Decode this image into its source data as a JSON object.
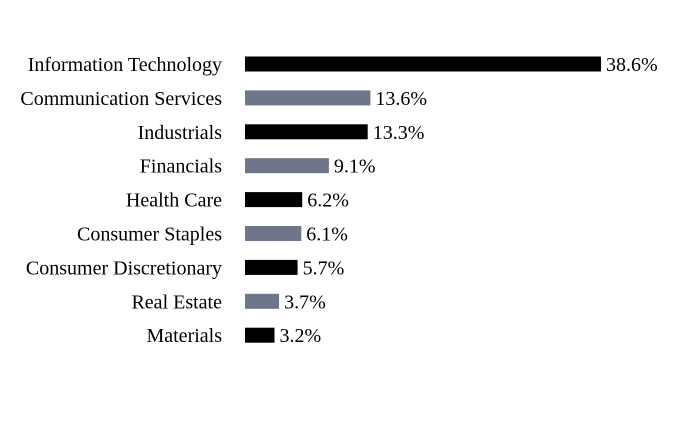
{
  "chart_data": {
    "type": "bar",
    "orientation": "horizontal",
    "categories": [
      "Information Technology",
      "Communication Services",
      "Industrials",
      "Financials",
      "Health Care",
      "Consumer Staples",
      "Consumer Discretionary",
      "Real Estate",
      "Materials"
    ],
    "values": [
      38.6,
      13.6,
      13.3,
      9.1,
      6.2,
      6.1,
      5.7,
      3.7,
      3.2
    ],
    "value_labels": [
      "38.6%",
      "13.6%",
      "13.3%",
      "9.1%",
      "6.2%",
      "6.1%",
      "5.7%",
      "3.7%",
      "3.2%"
    ],
    "unit": "%",
    "colors": [
      "#000000",
      "#6d7789"
    ],
    "color_pattern": "alternating",
    "title": "",
    "xlabel": "",
    "ylabel": "",
    "grid": false,
    "legend": "none"
  }
}
